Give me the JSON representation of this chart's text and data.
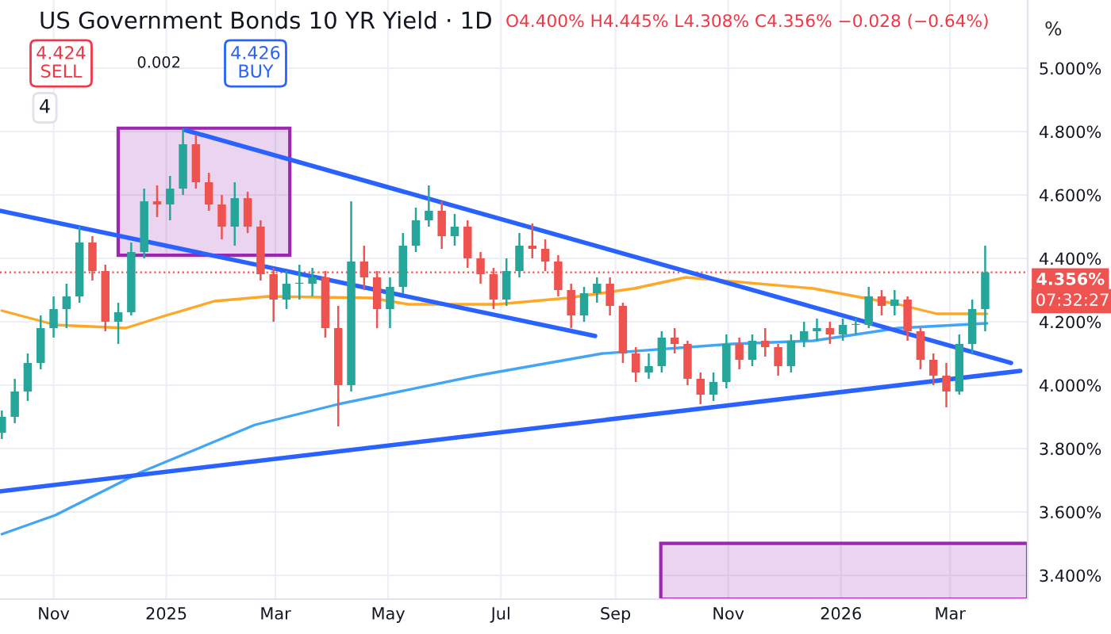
{
  "chart_data": {
    "type": "candlestick",
    "title": "US Government Bonds 10 YR Yield · 1D",
    "ylabel": "%",
    "annotations": [
      "O4.400% H4.445% L4.308% C4.356% −0.028 (−0.64%)",
      "4.424\nSELL",
      "0.002",
      "4.426\nBUY",
      "4",
      "07:32:27"
    ],
    "x": [
      "2024-10-04",
      "2024-10-11",
      "2024-10-18",
      "2024-10-25",
      "2024-11-01",
      "2024-11-08",
      "2024-11-15",
      "2024-11-22",
      "2024-11-29",
      "2024-12-06",
      "2024-12-13",
      "2024-12-20",
      "2024-12-27",
      "2025-01-03",
      "2025-01-10",
      "2025-01-17",
      "2025-01-24",
      "2025-01-31",
      "2025-02-07",
      "2025-02-14",
      "2025-02-21",
      "2025-02-28",
      "2025-03-07",
      "2025-03-14",
      "2025-03-21",
      "2025-03-28",
      "2025-04-04",
      "2025-04-11",
      "2025-04-18",
      "2025-04-25",
      "2025-05-02",
      "2025-05-09",
      "2025-05-16",
      "2025-05-23",
      "2025-05-30",
      "2025-06-06",
      "2025-06-13",
      "2025-06-20",
      "2025-06-27",
      "2025-07-04",
      "2025-07-11",
      "2025-07-18",
      "2025-07-25",
      "2025-08-01",
      "2025-08-08",
      "2025-08-15",
      "2025-08-22",
      "2025-08-29",
      "2025-09-05",
      "2025-09-12",
      "2025-09-19",
      "2025-09-26",
      "2025-10-03",
      "2025-10-10",
      "2025-10-17",
      "2025-10-24",
      "2025-10-31",
      "2025-11-07",
      "2025-11-14",
      "2025-11-21",
      "2025-11-28",
      "2025-12-05",
      "2025-12-12",
      "2025-12-19",
      "2025-12-26",
      "2026-01-02",
      "2026-01-09",
      "2026-01-16",
      "2026-01-23",
      "2026-01-30",
      "2026-02-06",
      "2026-02-13",
      "2026-02-20",
      "2026-02-27",
      "2026-03-06",
      "2026-03-13",
      "2026-03-20"
    ],
    "ohlc": [
      [
        3.85,
        3.92,
        3.83,
        3.9
      ],
      [
        3.9,
        4.02,
        3.88,
        3.98
      ],
      [
        3.98,
        4.1,
        3.95,
        4.07
      ],
      [
        4.07,
        4.22,
        4.05,
        4.18
      ],
      [
        4.18,
        4.28,
        4.15,
        4.24
      ],
      [
        4.24,
        4.32,
        4.18,
        4.28
      ],
      [
        4.28,
        4.5,
        4.26,
        4.45
      ],
      [
        4.45,
        4.47,
        4.33,
        4.36
      ],
      [
        4.36,
        4.38,
        4.17,
        4.2
      ],
      [
        4.2,
        4.26,
        4.13,
        4.23
      ],
      [
        4.23,
        4.45,
        4.22,
        4.42
      ],
      [
        4.42,
        4.62,
        4.4,
        4.58
      ],
      [
        4.58,
        4.63,
        4.53,
        4.57
      ],
      [
        4.57,
        4.66,
        4.52,
        4.62
      ],
      [
        4.62,
        4.81,
        4.6,
        4.76
      ],
      [
        4.76,
        4.79,
        4.62,
        4.64
      ],
      [
        4.64,
        4.67,
        4.55,
        4.57
      ],
      [
        4.57,
        4.6,
        4.46,
        4.5
      ],
      [
        4.5,
        4.64,
        4.44,
        4.59
      ],
      [
        4.59,
        4.61,
        4.48,
        4.5
      ],
      [
        4.5,
        4.52,
        4.33,
        4.35
      ],
      [
        4.35,
        4.37,
        4.2,
        4.27
      ],
      [
        4.27,
        4.36,
        4.24,
        4.32
      ],
      [
        4.32,
        4.38,
        4.27,
        4.32
      ],
      [
        4.32,
        4.37,
        4.28,
        4.34
      ],
      [
        4.34,
        4.36,
        4.15,
        4.18
      ],
      [
        4.18,
        4.25,
        3.87,
        4.0
      ],
      [
        4.0,
        4.58,
        3.98,
        4.39
      ],
      [
        4.39,
        4.44,
        4.3,
        4.34
      ],
      [
        4.34,
        4.36,
        4.18,
        4.24
      ],
      [
        4.24,
        4.34,
        4.18,
        4.31
      ],
      [
        4.31,
        4.48,
        4.29,
        4.44
      ],
      [
        4.44,
        4.56,
        4.42,
        4.52
      ],
      [
        4.52,
        4.63,
        4.5,
        4.55
      ],
      [
        4.55,
        4.58,
        4.43,
        4.47
      ],
      [
        4.47,
        4.54,
        4.44,
        4.5
      ],
      [
        4.5,
        4.52,
        4.37,
        4.4
      ],
      [
        4.4,
        4.42,
        4.32,
        4.35
      ],
      [
        4.35,
        4.37,
        4.24,
        4.27
      ],
      [
        4.27,
        4.4,
        4.25,
        4.36
      ],
      [
        4.36,
        4.48,
        4.34,
        4.44
      ],
      [
        4.44,
        4.51,
        4.4,
        4.43
      ],
      [
        4.43,
        4.46,
        4.36,
        4.39
      ],
      [
        4.39,
        4.41,
        4.28,
        4.3
      ],
      [
        4.3,
        4.32,
        4.18,
        4.22
      ],
      [
        4.22,
        4.31,
        4.2,
        4.29
      ],
      [
        4.29,
        4.34,
        4.26,
        4.32
      ],
      [
        4.32,
        4.34,
        4.22,
        4.25
      ],
      [
        4.25,
        4.26,
        4.07,
        4.1
      ],
      [
        4.1,
        4.12,
        4.01,
        4.04
      ],
      [
        4.04,
        4.1,
        4.02,
        4.06
      ],
      [
        4.06,
        4.17,
        4.04,
        4.15
      ],
      [
        4.15,
        4.18,
        4.1,
        4.13
      ],
      [
        4.13,
        4.14,
        4.0,
        4.02
      ],
      [
        4.02,
        4.04,
        3.94,
        3.97
      ],
      [
        3.97,
        4.04,
        3.95,
        4.01
      ],
      [
        4.01,
        4.16,
        3.99,
        4.13
      ],
      [
        4.13,
        4.15,
        4.05,
        4.08
      ],
      [
        4.08,
        4.16,
        4.06,
        4.14
      ],
      [
        4.14,
        4.18,
        4.09,
        4.12
      ],
      [
        4.12,
        4.13,
        4.03,
        4.06
      ],
      [
        4.06,
        4.16,
        4.04,
        4.14
      ],
      [
        4.14,
        4.2,
        4.12,
        4.17
      ],
      [
        4.17,
        4.21,
        4.14,
        4.18
      ],
      [
        4.18,
        4.2,
        4.13,
        4.16
      ],
      [
        4.16,
        4.21,
        4.14,
        4.19
      ],
      [
        4.19,
        4.21,
        4.16,
        4.19
      ],
      [
        4.19,
        4.31,
        4.18,
        4.28
      ],
      [
        4.28,
        4.3,
        4.22,
        4.25
      ],
      [
        4.25,
        4.3,
        4.22,
        4.27
      ],
      [
        4.27,
        4.28,
        4.14,
        4.17
      ],
      [
        4.17,
        4.18,
        4.05,
        4.08
      ],
      [
        4.08,
        4.1,
        4.0,
        4.03
      ],
      [
        4.03,
        4.07,
        3.93,
        3.98
      ],
      [
        3.98,
        4.16,
        3.97,
        4.13
      ],
      [
        4.13,
        4.27,
        4.1,
        4.24
      ],
      [
        4.24,
        4.44,
        4.17,
        4.356
      ]
    ],
    "colors": [
      "#26a69a",
      "#26a69a",
      "#26a69a",
      "#26a69a",
      "#26a69a",
      "#26a69a",
      "#26a69a",
      "#ef5350",
      "#ef5350",
      "#26a69a",
      "#26a69a",
      "#26a69a",
      "#ef5350",
      "#26a69a",
      "#26a69a",
      "#ef5350",
      "#ef5350",
      "#ef5350",
      "#26a69a",
      "#ef5350",
      "#ef5350",
      "#ef5350",
      "#26a69a",
      "#26a69a",
      "#26a69a",
      "#ef5350",
      "#ef5350",
      "#26a69a",
      "#ef5350",
      "#ef5350",
      "#26a69a",
      "#26a69a",
      "#26a69a",
      "#26a69a",
      "#ef5350",
      "#26a69a",
      "#ef5350",
      "#ef5350",
      "#ef5350",
      "#26a69a",
      "#26a69a",
      "#ef5350",
      "#ef5350",
      "#ef5350",
      "#ef5350",
      "#26a69a",
      "#26a69a",
      "#ef5350",
      "#ef5350",
      "#ef5350",
      "#26a69a",
      "#26a69a",
      "#ef5350",
      "#ef5350",
      "#ef5350",
      "#26a69a",
      "#26a69a",
      "#ef5350",
      "#26a69a",
      "#ef5350",
      "#ef5350",
      "#26a69a",
      "#26a69a",
      "#26a69a",
      "#ef5350",
      "#26a69a",
      "#26a69a",
      "#26a69a",
      "#ef5350",
      "#26a69a",
      "#ef5350",
      "#ef5350",
      "#ef5350",
      "#ef5350",
      "#26a69a",
      "#26a69a",
      "#26a69a"
    ],
    "series": [
      {
        "type": "line",
        "color": "#ffa726",
        "x": [
          "2024-10-04",
          "2024-11-02",
          "2024-12-10",
          "2024-12-29",
          "2025-01-27",
          "2025-02-25",
          "2025-04-22",
          "2025-05-12",
          "2025-06-29",
          "2025-08-06",
          "2025-09-11",
          "2025-10-09",
          "2025-12-17",
          "2026-02-01",
          "2026-02-22",
          "2026-03-21"
        ],
        "values": [
          4.235,
          4.19,
          4.18,
          4.215,
          4.265,
          4.28,
          4.275,
          4.255,
          4.255,
          4.275,
          4.305,
          4.34,
          4.305,
          4.255,
          4.225,
          4.225
        ]
      },
      {
        "type": "line",
        "color": "#42a5f5",
        "x": [
          "2024-10-04",
          "2024-11-02",
          "2024-12-18",
          "2025-02-18",
          "2025-04-04",
          "2025-06-18",
          "2025-08-25",
          "2025-11-03",
          "2025-12-17",
          "2026-02-01",
          "2026-03-21"
        ],
        "values": [
          3.53,
          3.59,
          3.725,
          3.875,
          3.94,
          4.03,
          4.1,
          4.13,
          4.14,
          4.18,
          4.195
        ]
      },
      {
        "type": "line",
        "color": "#2962ff",
        "x": [
          "2025-01-11",
          "2026-04-03"
        ],
        "values": [
          4.805,
          4.07
        ]
      },
      {
        "type": "line",
        "color": "#2962ff",
        "x": [
          "2024-10-03",
          "2025-08-21"
        ],
        "values": [
          4.55,
          4.155
        ]
      },
      {
        "type": "line",
        "color": "#2962ff",
        "x": [
          "2024-10-03",
          "2026-04-08"
        ],
        "values": [
          3.665,
          4.045
        ]
      }
    ],
    "ref_lines": [
      {
        "axis": "y",
        "value": 4.356,
        "label": "4.356%",
        "color": "#ef5350",
        "line_style": "dotted"
      }
    ],
    "xlim": [
      "2024-10-03",
      "2026-04-12"
    ],
    "xticks": [
      {
        "value": "2024-11-01",
        "label": "Nov"
      },
      {
        "value": "2025-01-01",
        "label": "2025"
      },
      {
        "value": "2025-03-01",
        "label": "Mar"
      },
      {
        "value": "2025-05-01",
        "label": "May"
      },
      {
        "value": "2025-07-01",
        "label": "Jul"
      },
      {
        "value": "2025-09-01",
        "label": "Sep"
      },
      {
        "value": "2025-11-01",
        "label": "Nov"
      },
      {
        "value": "2026-01-01",
        "label": "2026"
      },
      {
        "value": "2026-03-01",
        "label": "Mar"
      }
    ],
    "ylim": [
      3.325,
      5.215
    ],
    "yticks": [
      {
        "value": 3.4,
        "label": "3.400%"
      },
      {
        "value": 3.6,
        "label": "3.600%"
      },
      {
        "value": 3.8,
        "label": "3.800%"
      },
      {
        "value": 4.0,
        "label": "4.000%"
      },
      {
        "value": 4.2,
        "label": "4.200%"
      },
      {
        "value": 4.4,
        "label": "4.400%"
      },
      {
        "value": 4.6,
        "label": "4.600%"
      },
      {
        "value": 4.8,
        "label": "4.800%"
      },
      {
        "value": 5.0,
        "label": "5.000%"
      }
    ],
    "grid": true,
    "legend": false
  }
}
